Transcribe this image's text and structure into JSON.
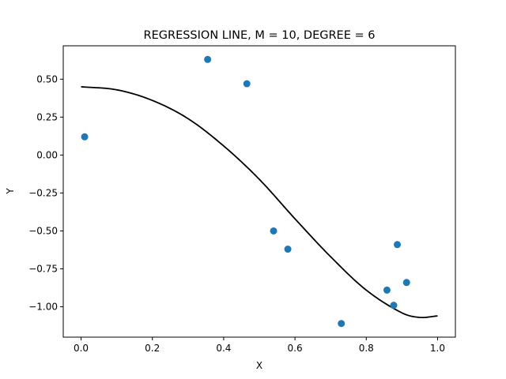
{
  "chart_data": {
    "type": "scatter",
    "title": "REGRESSION LINE, M  = 10, DEGREE = 6",
    "xlabel": "X",
    "ylabel": "Y",
    "xlim": [
      -0.05,
      1.05
    ],
    "ylim": [
      -1.2,
      0.72
    ],
    "x_ticks": [
      0.0,
      0.2,
      0.4,
      0.6,
      0.8,
      1.0
    ],
    "x_tick_labels": [
      "0.0",
      "0.2",
      "0.4",
      "0.6",
      "0.8",
      "1.0"
    ],
    "y_ticks": [
      0.5,
      0.25,
      0.0,
      -0.25,
      -0.5,
      -0.75,
      -1.0
    ],
    "y_tick_labels": [
      "0.50",
      "0.25",
      "0.00",
      "−0.25",
      "−0.50",
      "−0.75",
      "−1.00"
    ],
    "grid": false,
    "legend": "none",
    "colors": {
      "points": "#1f77b4",
      "line": "#000000"
    },
    "points": {
      "x": [
        0.01,
        0.355,
        0.465,
        0.54,
        0.58,
        0.73,
        0.858,
        0.877,
        0.887,
        0.913
      ],
      "y": [
        0.12,
        0.63,
        0.47,
        -0.5,
        -0.62,
        -1.11,
        -0.89,
        -0.99,
        -0.59,
        -0.84
      ]
    },
    "line": {
      "x": [
        0.0,
        0.1,
        0.2,
        0.3,
        0.4,
        0.5,
        0.6,
        0.7,
        0.8,
        0.9,
        0.95,
        1.0
      ],
      "y": [
        0.45,
        0.43,
        0.36,
        0.24,
        0.06,
        -0.16,
        -0.42,
        -0.67,
        -0.89,
        -1.04,
        -1.07,
        -1.06
      ]
    }
  }
}
